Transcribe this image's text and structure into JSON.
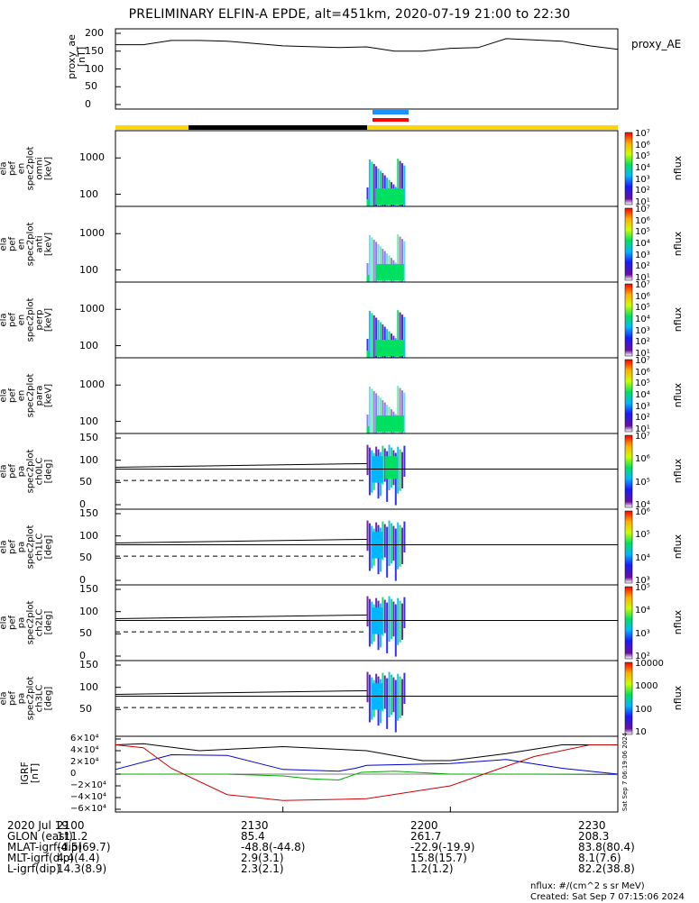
{
  "title": "PRELIMINARY ELFIN-A EPDE, alt=451km, 2020-07-19 21:00 to 22:30",
  "panels": [
    {
      "id": "proxy_ae",
      "ylabel": "proxy_ae\n[nT]",
      "right_label": "proxy_AE",
      "yticks": [
        "200",
        "150",
        "100",
        "50",
        "0"
      ]
    },
    {
      "id": "omni",
      "ylabel": "ela\npef\nen\nspec2plot\nomni\n[keV]",
      "yticks": [
        "1000",
        "100"
      ],
      "cbar_label": "nflux",
      "cbar_ticks": [
        "10⁷",
        "10⁶",
        "10⁵",
        "10⁴",
        "10³",
        "10²",
        "10¹"
      ]
    },
    {
      "id": "anti",
      "ylabel": "ela\npef\nen\nspec2plot\nanti\n[keV]",
      "yticks": [
        "1000",
        "100"
      ],
      "cbar_label": "nflux",
      "cbar_ticks": [
        "10⁷",
        "10⁶",
        "10⁵",
        "10⁴",
        "10³",
        "10²",
        "10¹"
      ]
    },
    {
      "id": "perp",
      "ylabel": "ela\npef\nen\nspec2plot\nperp\n[keV]",
      "yticks": [
        "1000",
        "100"
      ],
      "cbar_label": "nflux",
      "cbar_ticks": [
        "10⁷",
        "10⁶",
        "10⁵",
        "10⁴",
        "10³",
        "10²",
        "10¹"
      ]
    },
    {
      "id": "para",
      "ylabel": "ela\npef\nen\nspec2plot\npara\n[keV]",
      "yticks": [
        "1000",
        "100"
      ],
      "cbar_label": "nflux",
      "cbar_ticks": [
        "10⁷",
        "10⁶",
        "10⁵",
        "10⁴",
        "10³",
        "10²",
        "10¹"
      ]
    },
    {
      "id": "ch0LC",
      "ylabel": "ela\npef\npa\nspec2plot\nch0LC\n[deg]",
      "yticks": [
        "150",
        "100",
        "50",
        "0"
      ],
      "cbar_label": "nflux",
      "cbar_ticks": [
        "10⁷",
        "10⁶",
        "10⁵",
        "10⁴"
      ]
    },
    {
      "id": "ch1LC",
      "ylabel": "ela\npef\npa\nspec2plot\nch1LC\n[deg]",
      "yticks": [
        "150",
        "100",
        "50",
        "0"
      ],
      "cbar_label": "nflux",
      "cbar_ticks": [
        "10⁶",
        "10⁵",
        "10⁴",
        "10³"
      ]
    },
    {
      "id": "ch2LC",
      "ylabel": "ela\npef\npa\nspec2plot\nch2LC\n[deg]",
      "yticks": [
        "150",
        "100",
        "50",
        "0"
      ],
      "cbar_label": "nflux",
      "cbar_ticks": [
        "10⁵",
        "10⁴",
        "10³",
        "10²"
      ]
    },
    {
      "id": "ch3LC",
      "ylabel": "ela\npef\npa\nspec2plot\nch3LC\n[deg]",
      "yticks": [
        "150",
        "100",
        "50"
      ],
      "cbar_label": "nflux",
      "cbar_ticks": [
        "10000",
        "1000",
        "100",
        "10"
      ]
    },
    {
      "id": "igrf",
      "ylabel": "IGRF\n[nT]",
      "yticks": [
        "6×10⁴",
        "4×10⁴",
        "2×10⁴",
        "0",
        "−2×10⁴",
        "−4×10⁴",
        "−6×10⁴"
      ]
    }
  ],
  "footer": {
    "rows": [
      {
        "label": "2020 Jul 19",
        "values": [
          "2100",
          "2130",
          "2200",
          "2230"
        ]
      },
      {
        "label": "GLON (east)",
        "values": [
          "111.2",
          "85.4",
          "261.7",
          "208.3"
        ]
      },
      {
        "label": "MLAT-igrf(dip)",
        "values": [
          "-4.5(69.7)",
          "-48.8(-44.8)",
          "-22.9(-19.9)",
          "83.8(80.4)"
        ]
      },
      {
        "label": "MLT-igrf(dip)",
        "values": [
          "4.4(4.4)",
          "2.9(3.1)",
          "15.8(15.7)",
          "8.1(7.6)"
        ]
      },
      {
        "label": "L-igrf(dip)",
        "values": [
          "14.3(8.9)",
          "2.3(2.1)",
          "1.2(1.2)",
          "82.2(38.8)"
        ]
      }
    ],
    "units_note": "nflux: #/(cm^2 s sr MeV)",
    "created": "Created: Sat Sep  7 07:15:06 2024",
    "side_stamp": "Sat Sep  7 06:19:06 2024"
  },
  "colors": {
    "day_bar": "#FFD700",
    "night_bar": "#000000",
    "blue_bar": "#1E90FF",
    "red_bar": "#FF0000"
  },
  "chart_data": {
    "type": "line",
    "x_range": [
      "21:00",
      "22:30"
    ],
    "proxy_ae": {
      "ylim": [
        0,
        200
      ],
      "x": [
        "21:00",
        "21:05",
        "21:10",
        "21:15",
        "21:20",
        "21:30",
        "21:40",
        "21:45",
        "21:50",
        "21:55",
        "22:00",
        "22:05",
        "22:10",
        "22:20",
        "22:25",
        "22:30"
      ],
      "values": [
        168,
        168,
        180,
        180,
        178,
        165,
        160,
        162,
        150,
        150,
        158,
        160,
        185,
        178,
        165,
        155
      ]
    },
    "igrf": {
      "ylim": [
        -60000,
        60000
      ],
      "series": [
        {
          "color": "#000000",
          "x": [
            "21:00",
            "21:05",
            "21:15",
            "21:30",
            "21:45",
            "21:55",
            "22:00",
            "22:10",
            "22:20",
            "22:30"
          ],
          "values": [
            50000,
            52000,
            40000,
            47000,
            40000,
            23000,
            23000,
            35000,
            50000,
            50000
          ]
        },
        {
          "color": "#0000CC",
          "x": [
            "21:00",
            "21:10",
            "21:20",
            "21:30",
            "21:40",
            "21:43",
            "21:45",
            "22:00",
            "22:10",
            "22:20",
            "22:30"
          ],
          "values": [
            8000,
            33000,
            32000,
            8000,
            5000,
            10000,
            15000,
            18000,
            25000,
            10000,
            0
          ]
        },
        {
          "color": "#00AA00",
          "x": [
            "21:00",
            "21:20",
            "21:30",
            "21:35",
            "21:40",
            "21:44",
            "21:50",
            "22:00",
            "22:15",
            "22:30"
          ],
          "values": [
            0,
            0,
            -3000,
            -8000,
            -10000,
            3000,
            5000,
            0,
            0,
            -1000
          ]
        },
        {
          "color": "#CC0000",
          "x": [
            "21:00",
            "21:05",
            "21:10",
            "21:20",
            "21:30",
            "21:45",
            "22:00",
            "22:15",
            "22:25",
            "22:30"
          ],
          "values": [
            50000,
            45000,
            10000,
            -35000,
            -45000,
            -42000,
            -20000,
            30000,
            50000,
            50000
          ]
        }
      ]
    },
    "spectrograms": {
      "active_interval": [
        "21:45",
        "21:52"
      ]
    }
  }
}
